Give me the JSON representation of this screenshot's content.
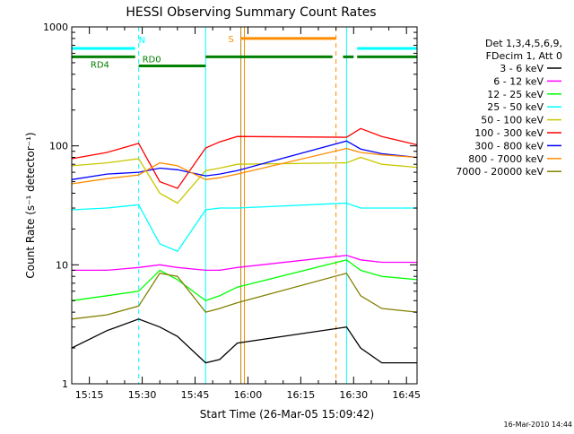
{
  "chart_data": {
    "type": "line",
    "title": "HESSI Observing Summary Count Rates",
    "xlabel": "Start Time (26-Mar-05 15:09:42)",
    "ylabel": "Count Rate (s⁻¹ detector⁻¹)",
    "yscale": "log",
    "ylim": [
      1,
      1000
    ],
    "xlim": [
      "15:10:00",
      "16:48:00"
    ],
    "grid": false,
    "legend_position": "right",
    "y_ticks": [
      "1",
      "10",
      "100",
      "1000"
    ],
    "x_ticks": [
      "15:15",
      "15:30",
      "15:45",
      "16:00",
      "16:15",
      "16:30",
      "16:45"
    ],
    "legend_header": [
      "Det 1,3,4,5,6,9,",
      "FDecim 1, Att 0"
    ],
    "timestamp": "16-Mar-2010 14:44",
    "flag_labels": {
      "N": "N",
      "RD0": "RD0",
      "RD4": "RD4",
      "S": "S"
    },
    "flags": {
      "N": {
        "color": "#00ffff",
        "segments": [
          [
            "15:10",
            "15:28"
          ],
          [
            "16:31",
            "16:48"
          ]
        ],
        "level": 660
      },
      "RD0": {
        "color": "#008000",
        "segments": [
          [
            "15:29",
            "15:48"
          ]
        ],
        "level": 470
      },
      "RD4": {
        "color": "#008000",
        "segments": [
          [
            "15:10",
            "15:28"
          ],
          [
            "15:48",
            "16:24"
          ],
          [
            "16:27",
            "16:30"
          ],
          [
            "16:31",
            "16:48"
          ]
        ],
        "level": 560
      },
      "S": {
        "color": "#ff8c00",
        "segments": [
          [
            "15:58",
            "16:25"
          ]
        ],
        "level": 800
      }
    },
    "markers": [
      {
        "time": "15:10",
        "color": "#00ffff",
        "style": "dashed"
      },
      {
        "time": "15:29",
        "color": "#00ffff",
        "style": "dashed"
      },
      {
        "time": "15:48",
        "color": "#00ffff",
        "style": "solid"
      },
      {
        "time": "15:58",
        "color": "#b8860b",
        "style": "solid"
      },
      {
        "time": "15:59",
        "color": "#ff8c00",
        "style": "solid"
      },
      {
        "time": "16:25",
        "color": "#ff8c00",
        "style": "dashed"
      },
      {
        "time": "16:28",
        "color": "#00ffff",
        "style": "solid"
      },
      {
        "time": "16:48",
        "color": "#00ffff",
        "style": "dashed"
      }
    ],
    "series": [
      {
        "name": "3 - 6 keV",
        "color": "#000000",
        "x": [
          "15:10",
          "15:20",
          "15:29",
          "15:35",
          "15:40",
          "15:48",
          "15:52",
          "15:57",
          "16:28",
          "16:32",
          "16:38",
          "16:48"
        ],
        "y": [
          2.0,
          2.8,
          3.5,
          3.0,
          2.5,
          1.5,
          1.6,
          2.2,
          3.0,
          2.0,
          1.5,
          1.5
        ]
      },
      {
        "name": "6 - 12 keV",
        "color": "#ff00ff",
        "x": [
          "15:10",
          "15:20",
          "15:29",
          "15:35",
          "15:40",
          "15:48",
          "15:52",
          "15:57",
          "16:28",
          "16:32",
          "16:38",
          "16:48"
        ],
        "y": [
          9.0,
          9.0,
          9.5,
          10.0,
          9.5,
          9.0,
          9.0,
          9.5,
          12.0,
          11.0,
          10.5,
          10.5
        ]
      },
      {
        "name": "12 - 25 keV",
        "color": "#00ff00",
        "x": [
          "15:10",
          "15:20",
          "15:29",
          "15:35",
          "15:40",
          "15:48",
          "15:52",
          "15:57",
          "16:28",
          "16:32",
          "16:38",
          "16:48"
        ],
        "y": [
          5.0,
          5.5,
          6.0,
          9.0,
          7.5,
          5.0,
          5.5,
          6.5,
          11.0,
          9.0,
          8.0,
          7.5
        ]
      },
      {
        "name": "25 - 50 keV",
        "color": "#00ffff",
        "x": [
          "15:10",
          "15:20",
          "15:29",
          "15:35",
          "15:40",
          "15:48",
          "15:52",
          "15:57",
          "16:28",
          "16:32",
          "16:38",
          "16:48"
        ],
        "y": [
          29.0,
          30.0,
          32.0,
          15.0,
          13.0,
          29.0,
          30.0,
          30.0,
          33.0,
          30.0,
          30.0,
          30.0
        ]
      },
      {
        "name": "50 - 100 keV",
        "color": "#c8c800",
        "x": [
          "15:10",
          "15:20",
          "15:29",
          "15:35",
          "15:40",
          "15:48",
          "15:52",
          "15:57",
          "16:28",
          "16:32",
          "16:38",
          "16:48"
        ],
        "y": [
          68.0,
          72.0,
          78.0,
          40.0,
          33.0,
          62.0,
          65.0,
          70.0,
          72.0,
          80.0,
          70.0,
          66.0
        ]
      },
      {
        "name": "100 - 300 keV",
        "color": "#ff0000",
        "x": [
          "15:10",
          "15:20",
          "15:29",
          "15:35",
          "15:40",
          "15:48",
          "15:52",
          "15:57",
          "16:28",
          "16:32",
          "16:38",
          "16:48"
        ],
        "y": [
          78.0,
          88.0,
          105.0,
          50.0,
          44.0,
          96.0,
          108.0,
          120.0,
          118.0,
          140.0,
          120.0,
          102.0
        ]
      },
      {
        "name": "300 - 800 keV",
        "color": "#0000ff",
        "x": [
          "15:10",
          "15:20",
          "15:29",
          "15:35",
          "15:40",
          "15:48",
          "15:52",
          "15:57",
          "16:28",
          "16:32",
          "16:38",
          "16:48"
        ],
        "y": [
          52.0,
          58.0,
          60.0,
          65.0,
          63.0,
          56.0,
          58.0,
          62.0,
          110.0,
          94.0,
          86.0,
          80.0
        ]
      },
      {
        "name": "800 - 7000 keV",
        "color": "#ff8c00",
        "x": [
          "15:10",
          "15:20",
          "15:29",
          "15:35",
          "15:40",
          "15:48",
          "15:52",
          "15:57",
          "16:28",
          "16:32",
          "16:38",
          "16:48"
        ],
        "y": [
          48.0,
          53.0,
          57.0,
          72.0,
          68.0,
          52.0,
          54.0,
          58.0,
          95.0,
          88.0,
          84.0,
          80.0
        ]
      },
      {
        "name": "7000 - 20000 keV",
        "color": "#808000",
        "x": [
          "15:10",
          "15:20",
          "15:29",
          "15:35",
          "15:40",
          "15:48",
          "15:52",
          "15:57",
          "16:28",
          "16:32",
          "16:38",
          "16:48"
        ],
        "y": [
          3.5,
          3.8,
          4.5,
          8.5,
          8.0,
          4.0,
          4.3,
          4.8,
          8.5,
          5.5,
          4.3,
          4.0
        ]
      }
    ]
  }
}
